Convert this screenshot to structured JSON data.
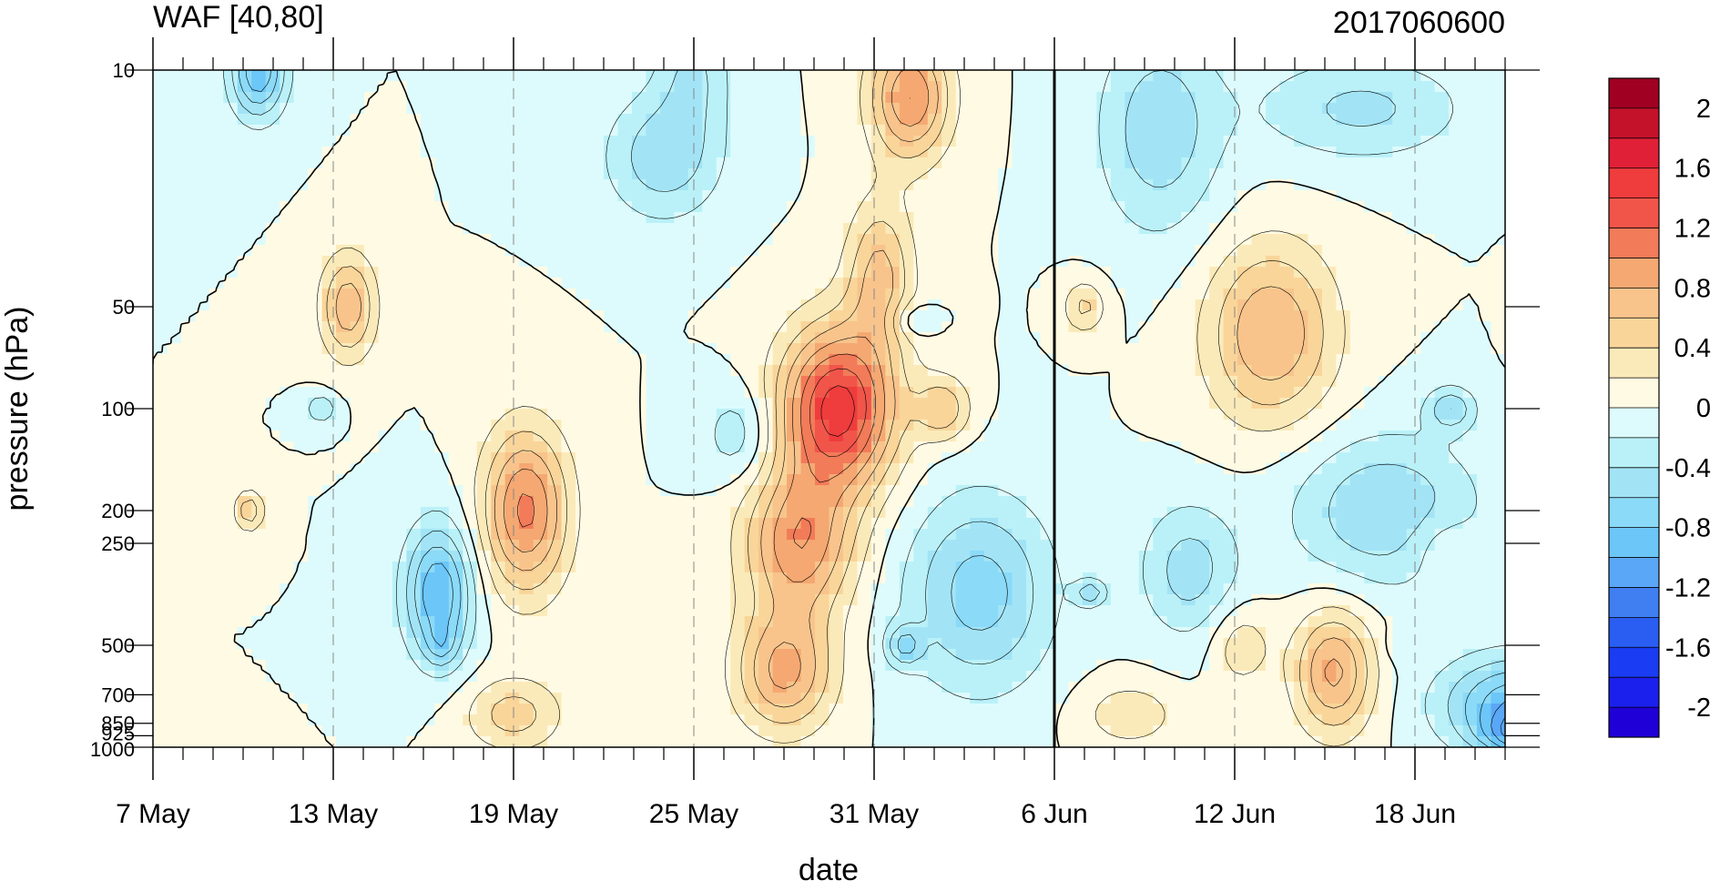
{
  "chart_data": {
    "type": "heatmap",
    "title": "WAF [40,80]",
    "subtitle": "2017060600",
    "xlabel": "date",
    "ylabel": "pressure (hPa)",
    "x_ticks": [
      "7 May",
      "13 May",
      "19 May",
      "25 May",
      "31 May",
      "6 Jun",
      "12 Jun",
      "18 Jun"
    ],
    "y_ticks": [
      "10",
      "50",
      "100",
      "200",
      "250",
      "500",
      "700",
      "850",
      "925",
      "1000"
    ],
    "y_scale": "log",
    "y_reversed": true,
    "xlim": [
      "2017-05-07",
      "2017-06-21"
    ],
    "ylim": [
      1000,
      10
    ],
    "vertical_marker": "2017-06-06",
    "colorbar": {
      "levels": [
        -2.2,
        -2.0,
        -1.8,
        -1.6,
        -1.4,
        -1.2,
        -1.0,
        -0.8,
        -0.6,
        -0.4,
        -0.2,
        0,
        0.2,
        0.4,
        0.6,
        0.8,
        1.0,
        1.2,
        1.4,
        1.6,
        1.8,
        2.0,
        2.2
      ],
      "tick_labels": [
        "2",
        "1.6",
        "1.2",
        "0.8",
        "0.4",
        "0",
        "-0.4",
        "-0.8",
        "-1.2",
        "-1.6",
        "-2"
      ],
      "colors": [
        "#1f00d6",
        "#1b20ed",
        "#1a3cf2",
        "#2a5ef2",
        "#3f7ff2",
        "#5aa7f7",
        "#6cc6f8",
        "#8adaf8",
        "#a2e4f6",
        "#baf1f8",
        "#ddfbfc",
        "#fffae3",
        "#fbeab9",
        "#f9d59a",
        "#f8c48c",
        "#f5a872",
        "#f27b59",
        "#f1554a",
        "#ef3c3c",
        "#e02036",
        "#c4122b",
        "#a00022"
      ]
    }
  }
}
